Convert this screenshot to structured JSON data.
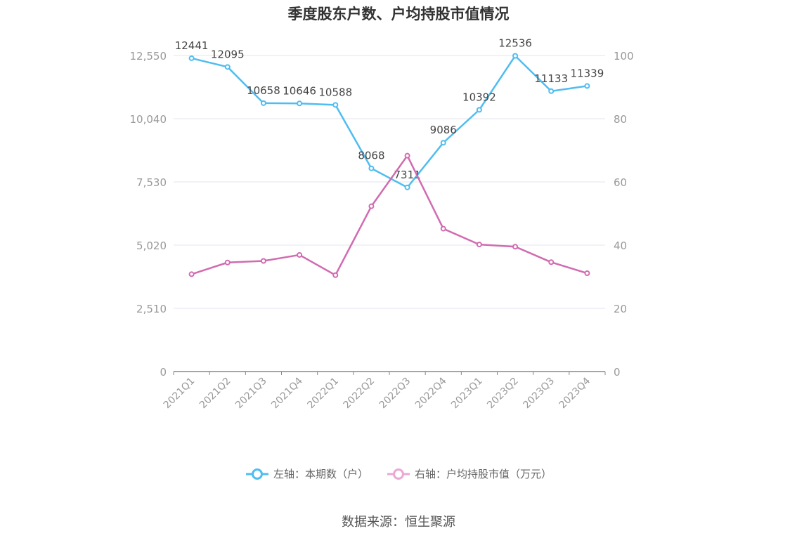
{
  "chart_data": {
    "type": "line",
    "title": "季度股东户数、户均持股市值情况",
    "categories": [
      "2021Q1",
      "2021Q2",
      "2021Q3",
      "2021Q4",
      "2022Q1",
      "2022Q2",
      "2022Q3",
      "2022Q4",
      "2023Q1",
      "2023Q2",
      "2023Q3",
      "2023Q4"
    ],
    "left_axis": {
      "ticks": [
        "0",
        "2,510",
        "5,020",
        "7,530",
        "10,040",
        "12,550"
      ],
      "ylim": [
        0,
        12550
      ]
    },
    "right_axis": {
      "ticks": [
        "0",
        "20",
        "40",
        "60",
        "80",
        "100"
      ],
      "ylim": [
        0,
        100
      ]
    },
    "series": [
      {
        "name": "左轴：本期数（户）",
        "axis": "left",
        "color": "#4fbdf0",
        "values": [
          12441,
          12095,
          10658,
          10646,
          10588,
          8068,
          7311,
          9086,
          10392,
          12536,
          11133,
          11339
        ],
        "labels": [
          "12441",
          "12095",
          "10658",
          "10646",
          "10588",
          "8068",
          "7311",
          "9086",
          "10392",
          "12536",
          "11133",
          "11339"
        ]
      },
      {
        "name": "右轴：户均持股市值（万元）",
        "axis": "right",
        "color": "#d16bb0",
        "values": [
          30.8,
          34.5,
          35.0,
          36.9,
          30.5,
          52.3,
          68.3,
          45.2,
          40.2,
          39.5,
          34.6,
          31.1
        ]
      }
    ],
    "grid": true,
    "legend_position": "bottom"
  },
  "source": "数据来源：恒生聚源"
}
